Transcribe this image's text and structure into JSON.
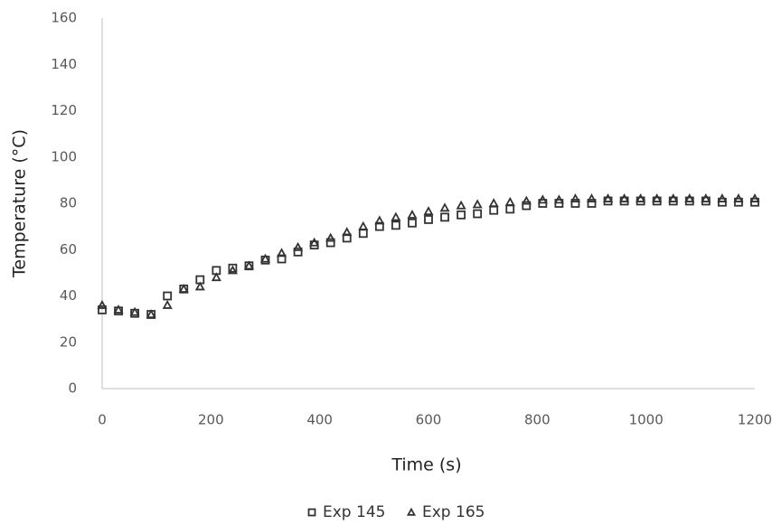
{
  "chart_data": {
    "type": "scatter",
    "x_label": "Time (s)",
    "y_label": "Temperature (°C)",
    "x": [
      0,
      30,
      60,
      90,
      120,
      150,
      180,
      210,
      240,
      270,
      300,
      330,
      360,
      390,
      420,
      450,
      480,
      510,
      540,
      570,
      600,
      630,
      660,
      690,
      720,
      750,
      780,
      810,
      840,
      870,
      900,
      930,
      960,
      990,
      1020,
      1050,
      1080,
      1110,
      1140,
      1170,
      1200
    ],
    "series": [
      {
        "name": "Exp 145",
        "color": "#333333",
        "marker": "square",
        "values": [
          34,
          33.5,
          32.5,
          32,
          40,
          43,
          47,
          51,
          52,
          53,
          55.5,
          56,
          59,
          62,
          63,
          65,
          67,
          70,
          70.5,
          71.5,
          73,
          74,
          75,
          75.5,
          77,
          77.5,
          79,
          80,
          80,
          80,
          80,
          81,
          81,
          81,
          81,
          81,
          81,
          81,
          80.5,
          80.5,
          80.5
        ]
      },
      {
        "name": "Exp 165",
        "color": "#333333",
        "marker": "triangle",
        "values": [
          36,
          34,
          33,
          32,
          36,
          43,
          44,
          48,
          51,
          53,
          56,
          58.5,
          61,
          63,
          65,
          67.5,
          70,
          72.5,
          74,
          75,
          76.5,
          78,
          79,
          79.5,
          80,
          80.5,
          81,
          81.5,
          81.5,
          82,
          82,
          82,
          82,
          82,
          82,
          82,
          82,
          82,
          82,
          82,
          82
        ]
      }
    ],
    "xlim": [
      0,
      1200
    ],
    "xticks": [
      0,
      200,
      400,
      600,
      800,
      1000,
      1200
    ],
    "ylim": [
      0,
      160
    ],
    "yticks": [
      0,
      20,
      40,
      60,
      80,
      100,
      120,
      140,
      160
    ],
    "grid": false,
    "legend": "bottom"
  }
}
